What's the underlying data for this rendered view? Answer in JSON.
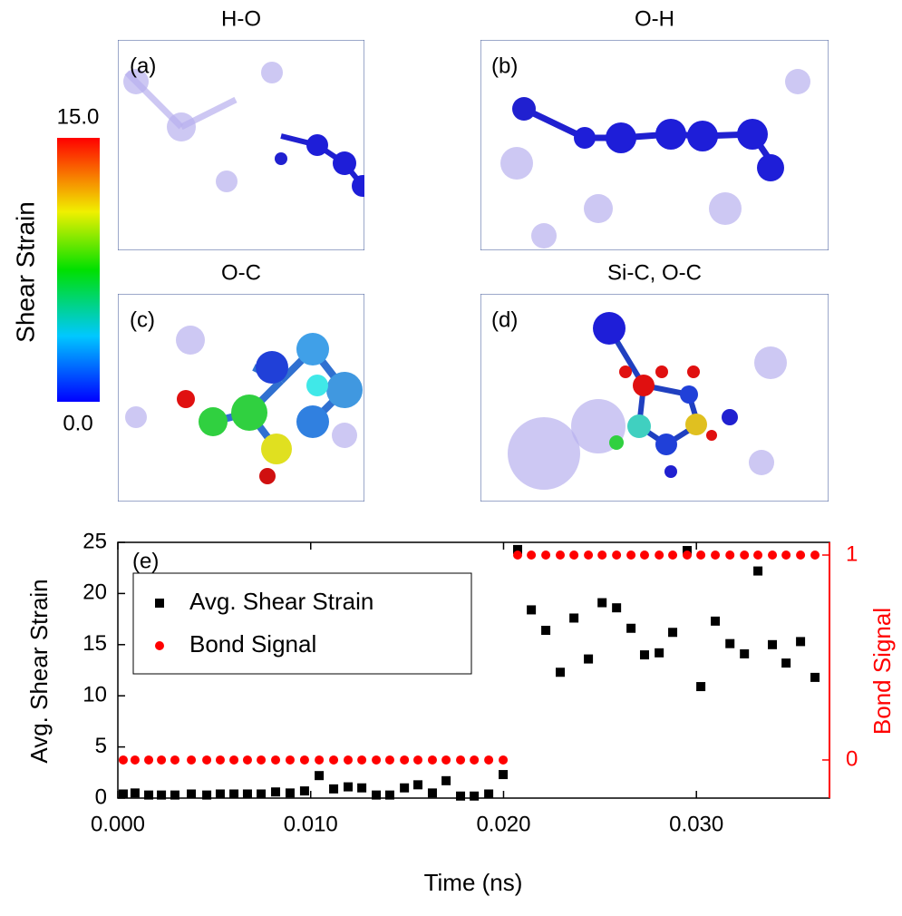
{
  "colorbar": {
    "label": "Shear Strain",
    "max": "15.0",
    "min": "0.0"
  },
  "panels": [
    {
      "title": "H-O",
      "label": "(a)"
    },
    {
      "title": "O-H",
      "label": "(b)"
    },
    {
      "title": "O-C",
      "label": "(c)"
    },
    {
      "title": "Si-C, O-C",
      "label": "(d)"
    }
  ],
  "chart_data": {
    "type": "scatter",
    "annotation": "(e)",
    "x_label": "Time (ns)",
    "y_label": "Avg. Shear Strain",
    "y2_label": "Bond Signal",
    "xlim": [
      0,
      0.0369
    ],
    "ylim": [
      0,
      25
    ],
    "y2lim": [
      -0.186,
      1.062
    ],
    "xticks": [
      {
        "value": 0,
        "label": "0.000"
      },
      {
        "value": 0.01,
        "label": "0.010"
      },
      {
        "value": 0.02,
        "label": "0.020"
      },
      {
        "value": 0.03,
        "label": "0.030"
      }
    ],
    "yticks": [
      0,
      5,
      10,
      15,
      20,
      25
    ],
    "y2ticks": [
      0,
      1
    ],
    "y2_color": "#ff0000",
    "legend": "upper-left",
    "x": [
      0.00028,
      0.00089,
      0.0016,
      0.00226,
      0.00296,
      0.00381,
      0.00461,
      0.00531,
      0.00602,
      0.00672,
      0.00743,
      0.00818,
      0.00893,
      0.00968,
      0.01044,
      0.01119,
      0.01194,
      0.01265,
      0.0134,
      0.0141,
      0.01486,
      0.01556,
      0.01631,
      0.01702,
      0.01777,
      0.01848,
      0.01923,
      0.01998,
      0.02073,
      0.02144,
      0.02219,
      0.02294,
      0.02365,
      0.0244,
      0.02511,
      0.02586,
      0.02661,
      0.02731,
      0.02807,
      0.02877,
      0.02952,
      0.03023,
      0.03098,
      0.03174,
      0.03249,
      0.03319,
      0.03394,
      0.03465,
      0.0354,
      0.03615
    ],
    "series": [
      {
        "name": "Avg. Shear Strain",
        "color": "#000000",
        "marker": "square",
        "values": [
          0.4,
          0.5,
          0.3,
          0.3,
          0.3,
          0.4,
          0.3,
          0.4,
          0.4,
          0.4,
          0.4,
          0.6,
          0.5,
          0.7,
          2.2,
          0.9,
          1.1,
          1.0,
          0.3,
          0.3,
          1.0,
          1.3,
          0.5,
          1.7,
          0.2,
          0.2,
          0.4,
          2.3,
          24.3,
          18.4,
          16.4,
          12.3,
          17.6,
          13.6,
          19.1,
          18.6,
          16.6,
          14.0,
          14.2,
          16.2,
          24.2,
          10.9,
          17.3,
          15.1,
          14.1,
          22.2,
          15.0,
          13.2,
          15.3,
          11.8
        ]
      },
      {
        "name": "Bond Signal",
        "color": "#ff0000",
        "marker": "circle",
        "axis": "y2",
        "values": [
          0,
          0,
          0,
          0,
          0,
          0,
          0,
          0,
          0,
          0,
          0,
          0,
          0,
          0,
          0,
          0,
          0,
          0,
          0,
          0,
          0,
          0,
          0,
          0,
          0,
          0,
          0,
          0,
          1,
          1,
          1,
          1,
          1,
          1,
          1,
          1,
          1,
          1,
          1,
          1,
          1,
          1,
          1,
          1,
          1,
          1,
          1,
          1,
          1,
          1
        ]
      }
    ]
  }
}
